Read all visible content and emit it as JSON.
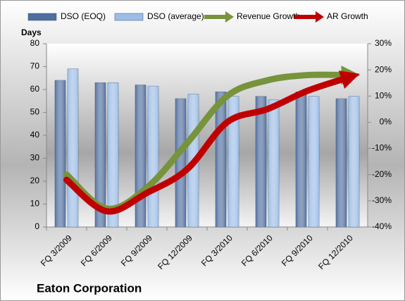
{
  "chart_data": {
    "type": "bar",
    "title": "Eaton Corporation",
    "y_label": "Days",
    "categories": [
      "FQ 3/2009",
      "FQ 6/2009",
      "FQ 9/2009",
      "FQ 12/2009",
      "FQ 3/2010",
      "FQ 6/2010",
      "FQ 9/2010",
      "FQ 12/2010"
    ],
    "series": [
      {
        "name": "DSO (EOQ)",
        "type": "bar",
        "color": "#4f6d9e",
        "values": [
          64,
          63,
          62,
          56,
          59,
          57,
          59,
          56
        ]
      },
      {
        "name": "DSO (average)",
        "type": "bar",
        "color": "#9cbde6",
        "values": [
          69,
          63,
          61.5,
          58,
          57,
          55.5,
          57,
          57
        ]
      },
      {
        "name": "Revenue Growth",
        "type": "line",
        "axis": "y2",
        "color": "#77933c",
        "values": [
          -20,
          -33,
          -25,
          -8,
          10,
          16,
          18,
          18
        ]
      },
      {
        "name": "AR Growth",
        "type": "line",
        "axis": "y2",
        "color": "#c00000",
        "values": [
          -22,
          -34,
          -27,
          -18,
          0,
          5,
          12,
          17
        ]
      }
    ],
    "ylim": [
      0,
      80
    ],
    "yticks": [
      0,
      10,
      20,
      30,
      40,
      50,
      60,
      70,
      80
    ],
    "y2lim": [
      -40,
      30
    ],
    "y2ticks": [
      {
        "value": -40,
        "label": "-40%"
      },
      {
        "value": -30,
        "label": "-30%"
      },
      {
        "value": -20,
        "label": "-20%"
      },
      {
        "value": -10,
        "label": "-10%"
      },
      {
        "value": 0,
        "label": "0%"
      },
      {
        "value": 10,
        "label": "10%"
      },
      {
        "value": 20,
        "label": "20%"
      },
      {
        "value": 30,
        "label": "30%"
      }
    ]
  }
}
